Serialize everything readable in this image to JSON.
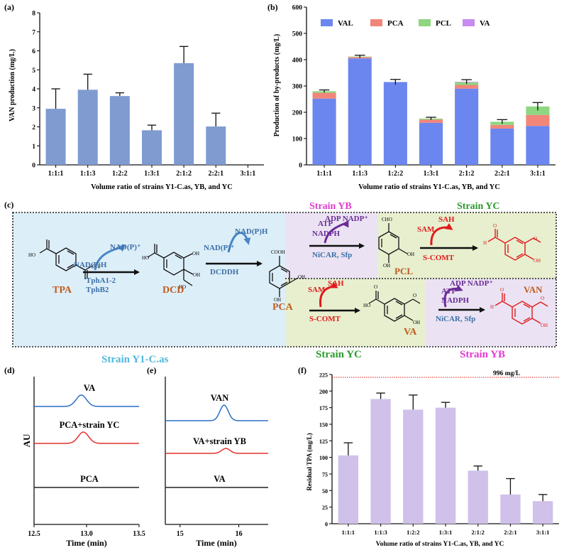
{
  "colors": {
    "van_bar": "#7f9bd0",
    "val": "#6b86ee",
    "pca": "#f2857a",
    "pcl": "#8ed67f",
    "va": "#c88bf0",
    "tpa_bar": "#cfc1ea",
    "panel_c_blue_bg": "#dceef8",
    "panel_c_green_bg": "#e7efcf",
    "panel_c_purple_bg": "#ebe3f3",
    "chem_blue": "#3c6fa7",
    "chem_orange": "#c25a1b",
    "chem_red": "#e01b1b",
    "chem_purple": "#6a2c96",
    "strain_blue": "#4fb8de",
    "strain_magenta": "#e33ad0",
    "strain_green": "#2c9a2c",
    "trace_blue": "#2a6fc4",
    "trace_red": "#e0302a",
    "trace_black": "#222222"
  },
  "chart_data": [
    {
      "panel": "(a)",
      "type": "bar",
      "categories": [
        "1:1:1",
        "1:1:3",
        "1:2:2",
        "1:3:1",
        "2:1:2",
        "2:2:1",
        "3:1:1"
      ],
      "values": [
        2.95,
        3.95,
        3.62,
        1.82,
        5.35,
        2.02,
        0
      ],
      "errors": [
        1.05,
        0.82,
        0.17,
        0.27,
        0.88,
        0.7,
        0
      ],
      "xlabel": "Volume ratio of strains Y1-C.as, YB, and YC",
      "ylabel": "VAN production (mg/L)",
      "ylim": [
        0,
        8
      ],
      "yticks": [
        "0",
        "1",
        "2",
        "3",
        "4",
        "5",
        "6",
        "7",
        "8"
      ]
    },
    {
      "panel": "(b)",
      "type": "bar",
      "stacked": true,
      "categories": [
        "1:1:1",
        "1:1:3",
        "1:2:2",
        "1:3:1",
        "2:1:2",
        "2:2:1",
        "3:1:1"
      ],
      "series": [
        {
          "name": "VAL",
          "values": [
            252,
            405,
            315,
            160,
            290,
            138,
            148
          ]
        },
        {
          "name": "PCA",
          "values": [
            22,
            5,
            0,
            12,
            14,
            14,
            42
          ]
        },
        {
          "name": "PCL",
          "values": [
            6,
            2,
            0,
            4,
            10,
            12,
            32
          ]
        },
        {
          "name": "VA",
          "values": [
            0,
            0,
            0,
            0,
            2,
            0,
            0
          ]
        }
      ],
      "errors": [
        5,
        5,
        10,
        5,
        8,
        8,
        15
      ],
      "xlabel": "Volume ratio of strains Y1-C.as, YB, and YC",
      "ylabel": "Production of by-products (mg/L)",
      "ylim": [
        0,
        600
      ],
      "yticks": [
        "0",
        "100",
        "200",
        "300",
        "400",
        "500",
        "600"
      ]
    },
    {
      "panel": "(d)",
      "type": "line",
      "traces": [
        {
          "name": "VA",
          "peak": 12.95
        },
        {
          "name": "PCA+strain YC",
          "peak": 12.97
        },
        {
          "name": "PCA",
          "peak": null
        }
      ],
      "xlabel": "Time (min)",
      "ylabel": "AU",
      "xlim": [
        12.5,
        13.5
      ],
      "xticks": [
        "12.5",
        "13.0",
        "13.5"
      ]
    },
    {
      "panel": "(e)",
      "type": "line",
      "traces": [
        {
          "name": "VAN",
          "peak": 15.75
        },
        {
          "name": "VA+strain YB",
          "peak": 15.78
        },
        {
          "name": "VA",
          "peak": null
        }
      ],
      "xlabel": "Time (min)",
      "ylabel": "",
      "xlim": [
        14.75,
        16.5
      ],
      "xticks": [
        "15",
        "16"
      ]
    },
    {
      "panel": "(f)",
      "type": "bar",
      "categories": [
        "1:1:1",
        "1:1:3",
        "1:2:2",
        "1:3:1",
        "2:1:2",
        "2:2:1",
        "3:1:1"
      ],
      "values": [
        103,
        188,
        172,
        175,
        80,
        44,
        34
      ],
      "errors": [
        19,
        9,
        22,
        8,
        7,
        24,
        10
      ],
      "xlabel": "Volume ratio of strains Y1-C.as, YB, and YC",
      "ylabel": "Residual TPA (mg/L)",
      "ylim": [
        0,
        225
      ],
      "yticks": [
        "0",
        "25",
        "50",
        "75",
        "100",
        "125",
        "150",
        "175",
        "200",
        "225"
      ],
      "reference_line": {
        "value": 225,
        "label": "996 mg/L"
      }
    }
  ],
  "panel_c": {
    "panel_label": "(c)",
    "strain_y1": "Strain Y1-C.as",
    "strain_yb_top": "Strain YB",
    "strain_yc_top": "Strain YC",
    "strain_yc_bottom": "Strain YC",
    "strain_yb_bottom": "Strain YB",
    "compounds": {
      "tpa": "TPA",
      "dcd": "DCD",
      "pca": "PCA",
      "pcl": "PCL",
      "van": "VAN",
      "va": "VA"
    },
    "cofactors": {
      "nadph_1": "NAD(P)H",
      "nadp_1": "NAD(P)⁺",
      "nadp_2": "NAD(P)⁺",
      "nadph_2": "NAD(P)H",
      "atp_1": "ATP",
      "nadph_3": "NADPH",
      "adp_nadp_1": "ADP NADP⁺",
      "sam_1": "SAM",
      "sah_1": "SAH",
      "sam_2": "SAM",
      "sah_2": "SAH",
      "atp_2": "ATP",
      "nadph_4": "NADPH",
      "adp_nadp_2": "ADP NADP⁺"
    },
    "enzymes": {
      "tph_1": "TphA1-2",
      "tph_2": "TphB2",
      "dcdd": "DCDDH",
      "nicar_1": "NiCAR, Sfp",
      "scomt_1": "S-COMT",
      "scomt_2": "S-COMT",
      "nicar_2": "NiCAR, Sfp"
    },
    "atoms": {
      "ho": "HO",
      "oh": "OH",
      "cooh": "COOH",
      "cho": "CHO",
      "h": "H",
      "o": "O"
    }
  }
}
